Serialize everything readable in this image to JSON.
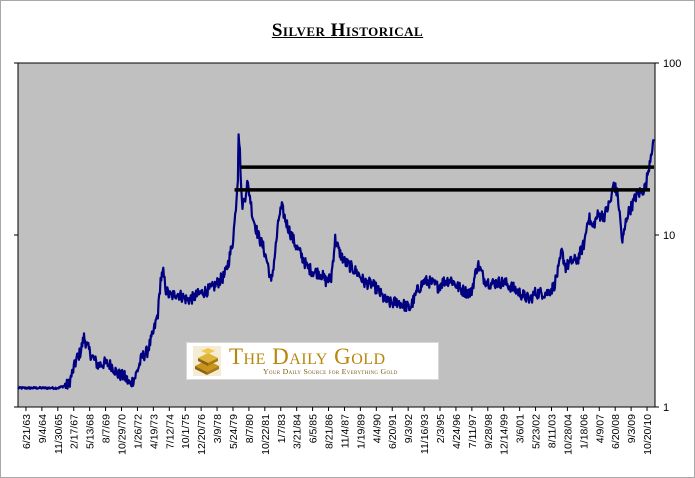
{
  "colors": {
    "plot_bg": "#c0c0c0",
    "series": "#000080",
    "line": "#000000",
    "brand": "#b8860b"
  },
  "logo": {
    "icon": "gold-bars-icon",
    "brand": "The Daily Gold",
    "tagline": "Your Daily Source for Everything Gold"
  },
  "chart_data": {
    "type": "line",
    "title": "Silver Historical",
    "scale": "log",
    "ylim": [
      1,
      100
    ],
    "y_ticks": [
      1,
      10,
      100
    ],
    "x_ticks": [
      "6/21/63",
      "9/4/64",
      "11/30/65",
      "2/17/67",
      "5/13/68",
      "8/7/69",
      "10/29/70",
      "1/26/72",
      "4/19/73",
      "7/12/74",
      "10/1/75",
      "12/20/76",
      "3/9/78",
      "5/24/79",
      "8/7/80",
      "10/22/81",
      "1/7/83",
      "3/21/84",
      "6/5/85",
      "8/21/86",
      "11/4/87",
      "1/19/89",
      "4/4/90",
      "6/20/91",
      "9/3/92",
      "11/16/93",
      "2/3/95",
      "4/24/96",
      "7/11/97",
      "9/28/98",
      "12/14/99",
      "3/6/01",
      "5/23/02",
      "8/11/03",
      "10/28/04",
      "1/18/06",
      "4/9/07",
      "6/20/08",
      "9/3/09",
      "10/20/10"
    ],
    "grid": false,
    "legend": "none",
    "series": [
      {
        "values": [
          [
            1963.5,
            1.29
          ],
          [
            1964.0,
            1.29
          ],
          [
            1964.5,
            1.29
          ],
          [
            1965.0,
            1.29
          ],
          [
            1965.5,
            1.29
          ],
          [
            1966.0,
            1.29
          ],
          [
            1966.5,
            1.29
          ],
          [
            1967.3,
            1.35
          ],
          [
            1967.6,
            1.6
          ],
          [
            1967.9,
            1.9
          ],
          [
            1968.2,
            2.1
          ],
          [
            1968.45,
            2.55
          ],
          [
            1968.7,
            2.25
          ],
          [
            1969.0,
            2.0
          ],
          [
            1969.5,
            1.75
          ],
          [
            1970.0,
            1.8
          ],
          [
            1970.5,
            1.75
          ],
          [
            1971.0,
            1.55
          ],
          [
            1971.5,
            1.5
          ],
          [
            1971.9,
            1.35
          ],
          [
            1972.3,
            1.5
          ],
          [
            1972.8,
            1.95
          ],
          [
            1973.2,
            2.1
          ],
          [
            1973.6,
            2.6
          ],
          [
            1974.0,
            3.5
          ],
          [
            1974.2,
            5.5
          ],
          [
            1974.4,
            6.0
          ],
          [
            1974.6,
            4.8
          ],
          [
            1974.8,
            4.5
          ],
          [
            1975.0,
            4.4
          ],
          [
            1975.4,
            4.6
          ],
          [
            1975.8,
            4.4
          ],
          [
            1976.2,
            4.2
          ],
          [
            1976.6,
            4.3
          ],
          [
            1977.0,
            4.5
          ],
          [
            1977.5,
            4.7
          ],
          [
            1978.0,
            4.85
          ],
          [
            1978.5,
            5.3
          ],
          [
            1979.0,
            5.8
          ],
          [
            1979.3,
            7.0
          ],
          [
            1979.6,
            9.0
          ],
          [
            1979.8,
            13.0
          ],
          [
            1980.0,
            22.0
          ],
          [
            1980.05,
            41.0
          ],
          [
            1980.15,
            30.0
          ],
          [
            1980.3,
            15.0
          ],
          [
            1980.5,
            16.0
          ],
          [
            1980.7,
            20.0
          ],
          [
            1980.9,
            17.0
          ],
          [
            1981.1,
            13.0
          ],
          [
            1981.5,
            10.0
          ],
          [
            1981.9,
            8.5
          ],
          [
            1982.3,
            6.5
          ],
          [
            1982.5,
            5.2
          ],
          [
            1982.8,
            8.0
          ],
          [
            1983.1,
            13.0
          ],
          [
            1983.3,
            14.5
          ],
          [
            1983.6,
            12.0
          ],
          [
            1984.0,
            10.0
          ],
          [
            1984.4,
            8.5
          ],
          [
            1984.8,
            7.5
          ],
          [
            1985.2,
            6.5
          ],
          [
            1985.7,
            6.1
          ],
          [
            1986.2,
            6.0
          ],
          [
            1986.6,
            5.4
          ],
          [
            1987.0,
            5.6
          ],
          [
            1987.3,
            9.5
          ],
          [
            1987.6,
            8.0
          ],
          [
            1988.0,
            7.0
          ],
          [
            1988.5,
            6.5
          ],
          [
            1989.0,
            6.0
          ],
          [
            1989.5,
            5.3
          ],
          [
            1990.0,
            5.2
          ],
          [
            1990.5,
            4.8
          ],
          [
            1991.0,
            4.2
          ],
          [
            1991.5,
            4.0
          ],
          [
            1992.0,
            4.1
          ],
          [
            1992.5,
            3.9
          ],
          [
            1992.9,
            3.75
          ],
          [
            1993.2,
            4.2
          ],
          [
            1993.5,
            4.8
          ],
          [
            1994.0,
            5.4
          ],
          [
            1994.5,
            5.3
          ],
          [
            1995.0,
            5.0
          ],
          [
            1995.5,
            5.4
          ],
          [
            1996.0,
            5.5
          ],
          [
            1996.5,
            5.0
          ],
          [
            1997.0,
            4.7
          ],
          [
            1997.5,
            4.6
          ],
          [
            1998.0,
            6.8
          ],
          [
            1998.5,
            5.5
          ],
          [
            1999.0,
            5.2
          ],
          [
            1999.5,
            5.3
          ],
          [
            2000.0,
            5.3
          ],
          [
            2000.5,
            5.0
          ],
          [
            2001.0,
            4.7
          ],
          [
            2001.5,
            4.4
          ],
          [
            2001.9,
            4.2
          ],
          [
            2002.3,
            4.6
          ],
          [
            2002.8,
            4.6
          ],
          [
            2003.2,
            4.6
          ],
          [
            2003.7,
            5.0
          ],
          [
            2004.1,
            6.5
          ],
          [
            2004.3,
            8.0
          ],
          [
            2004.6,
            6.5
          ],
          [
            2005.0,
            7.0
          ],
          [
            2005.5,
            7.2
          ],
          [
            2006.0,
            9.0
          ],
          [
            2006.3,
            13.0
          ],
          [
            2006.6,
            11.0
          ],
          [
            2007.0,
            13.0
          ],
          [
            2007.5,
            13.0
          ],
          [
            2008.0,
            16.0
          ],
          [
            2008.2,
            20.0
          ],
          [
            2008.5,
            17.0
          ],
          [
            2008.7,
            12.0
          ],
          [
            2008.85,
            9.0
          ],
          [
            2009.2,
            13.0
          ],
          [
            2009.6,
            15.0
          ],
          [
            2009.9,
            17.0
          ],
          [
            2010.3,
            18.0
          ],
          [
            2010.6,
            19.0
          ],
          [
            2010.8,
            24.0
          ],
          [
            2011.0,
            30.0
          ],
          [
            2011.2,
            36.0
          ]
        ]
      },
      {
        "name": "",
        "type": "hline",
        "values": [
          24.8,
          18.3
        ]
      }
    ]
  }
}
